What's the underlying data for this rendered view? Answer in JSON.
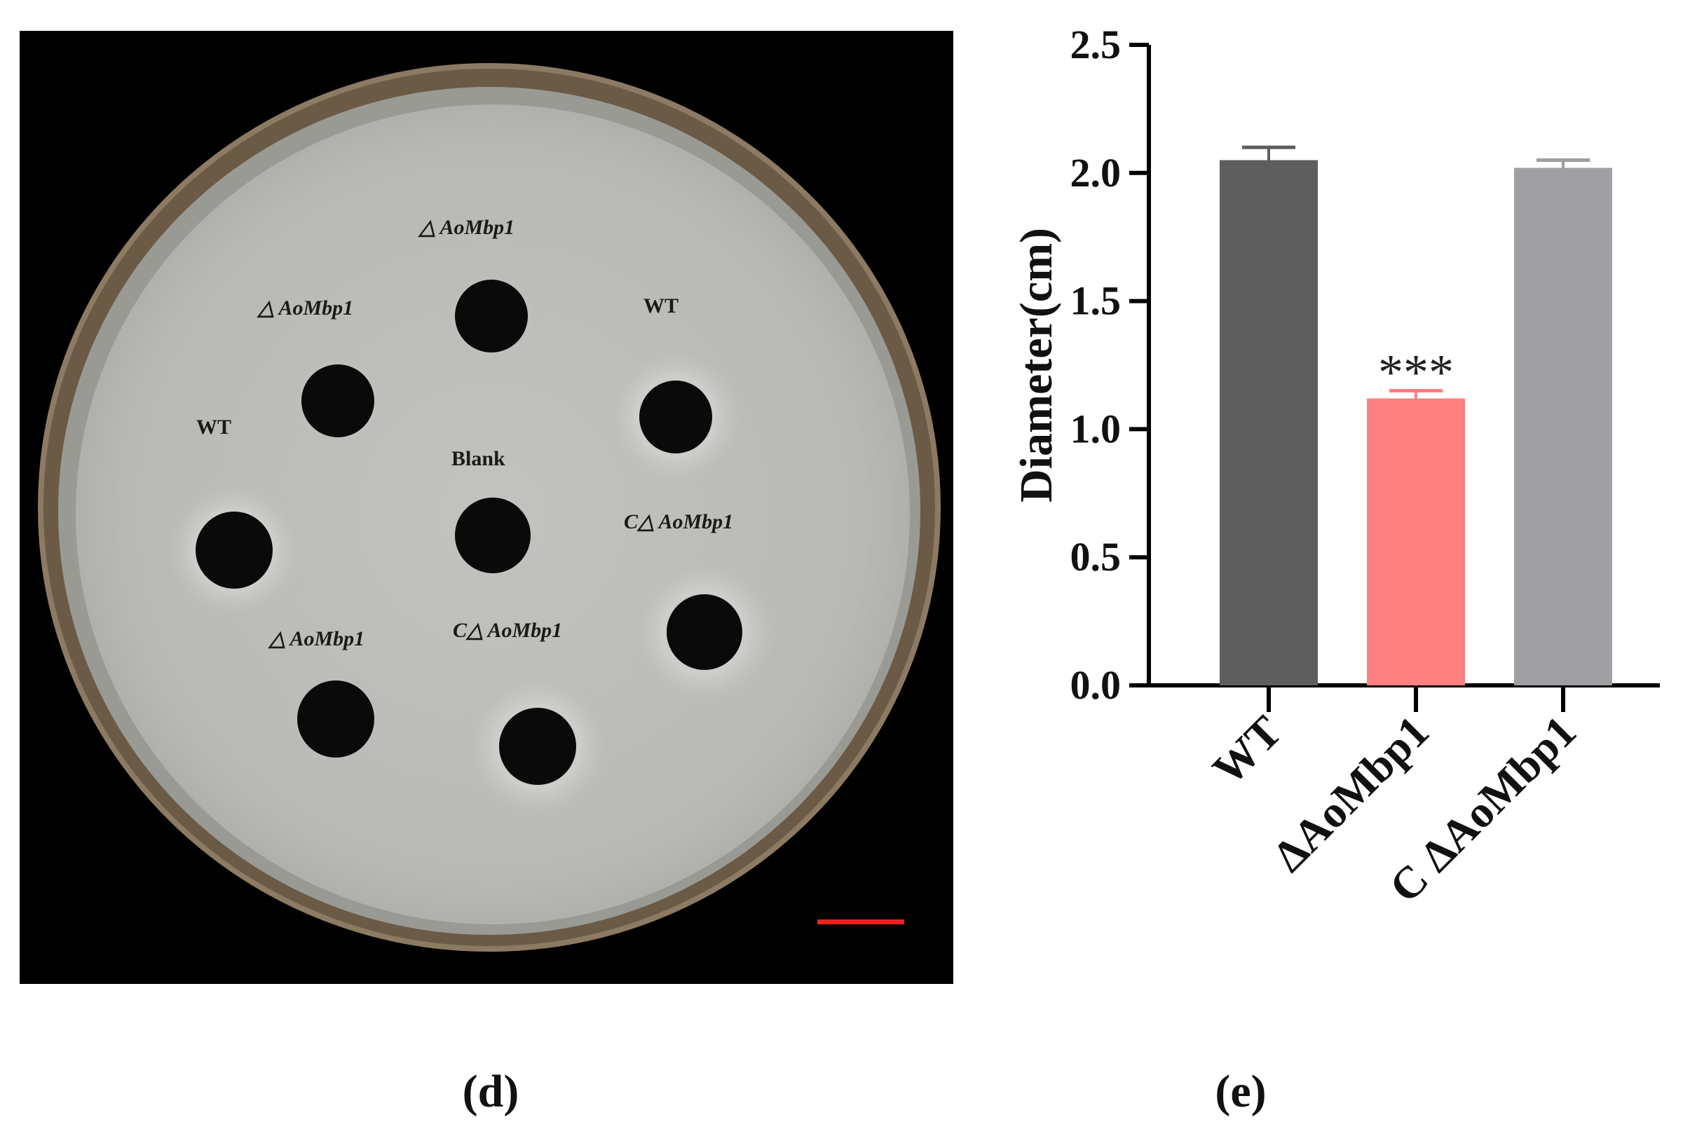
{
  "panels": {
    "d_label": "(d)",
    "e_label": "(e)"
  },
  "dish": {
    "labels": [
      {
        "text": "△ AoMbp1",
        "key": "top"
      },
      {
        "text": "△ AoMbp1",
        "key": "upper-left"
      },
      {
        "text": "WT",
        "key": "upper-right"
      },
      {
        "text": "WT",
        "key": "left"
      },
      {
        "text": "Blank",
        "key": "center"
      },
      {
        "text": "C△ AoMbp1",
        "key": "right"
      },
      {
        "text": "△ AoMbp1",
        "key": "lower-left"
      },
      {
        "text": "C△ AoMbp1",
        "key": "lower-center"
      }
    ],
    "scale_bar_color": "#e8231f"
  },
  "chart_data": {
    "type": "bar",
    "categories": [
      "WT",
      "ΔAoMbp1",
      "C ΔAoMbp1"
    ],
    "values": [
      2.05,
      1.12,
      2.02
    ],
    "errors": [
      0.05,
      0.03,
      0.03
    ],
    "colors": [
      "#5e5e5e",
      "#ff8080",
      "#9e9ea3"
    ],
    "annotations": [
      "",
      "***",
      ""
    ],
    "ylabel": "Diameter(cm)",
    "xlabel": "",
    "ylim": [
      0,
      2.5
    ],
    "yticks": [
      0.0,
      0.5,
      1.0,
      1.5,
      2.0,
      2.5
    ],
    "ytick_labels": [
      "0.0",
      "0.5",
      "1.0",
      "1.5",
      "2.0",
      "2.5"
    ],
    "grid": false
  }
}
